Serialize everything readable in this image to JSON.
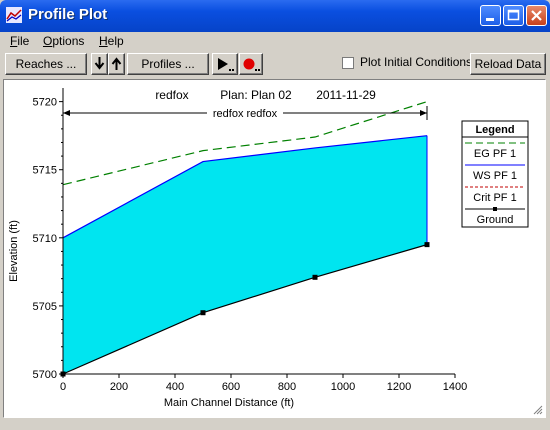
{
  "window": {
    "title": "Profile Plot"
  },
  "menu": [
    {
      "prefix": "",
      "u": "F",
      "rest": "ile"
    },
    {
      "prefix": "",
      "u": "O",
      "rest": "ptions"
    },
    {
      "prefix": "",
      "u": "H",
      "rest": "elp"
    }
  ],
  "toolbar": {
    "reaches_label": "Reaches ...",
    "profiles_label": "Profiles ...",
    "plot_initial_label": "Plot Initial Conditions",
    "plot_initial_checked": false,
    "reload_label": "Reload Data"
  },
  "chart_data": {
    "type": "area",
    "header": {
      "river": "redfox",
      "plan": "Plan: Plan 02",
      "date": "2011-11-29"
    },
    "reach_label": "redfox redfox",
    "reach_extent": [
      0,
      1300
    ],
    "xlabel": "Main Channel Distance (ft)",
    "ylabel": "Elevation (ft)",
    "xlim": [
      0,
      1400
    ],
    "ylim": [
      5700,
      5721
    ],
    "xticks": [
      0,
      200,
      400,
      600,
      800,
      1000,
      1200,
      1400
    ],
    "yticks": [
      5700,
      5705,
      5710,
      5715,
      5720
    ],
    "grid": false,
    "legend": {
      "title": "Legend",
      "position": "right",
      "entries": [
        "EG  PF 1",
        "WS  PF 1",
        "Crit  PF 1",
        "Ground"
      ]
    },
    "series": [
      {
        "name": "EG  PF 1",
        "color": "#008000",
        "style": "dashed",
        "x": [
          0,
          500,
          900,
          1300
        ],
        "y": [
          5713.9,
          5716.4,
          5717.4,
          5720.0
        ]
      },
      {
        "name": "WS  PF 1",
        "color": "#0000ff",
        "style": "solid",
        "fill": "#00e5f0",
        "x": [
          0,
          500,
          900,
          1300
        ],
        "y": [
          5710.0,
          5715.6,
          5716.6,
          5717.5
        ]
      },
      {
        "name": "Ground",
        "color": "#000000",
        "style": "solid",
        "marker": "square",
        "x": [
          0,
          500,
          900,
          1300
        ],
        "y": [
          5700.0,
          5704.5,
          5707.1,
          5709.5
        ]
      }
    ]
  }
}
